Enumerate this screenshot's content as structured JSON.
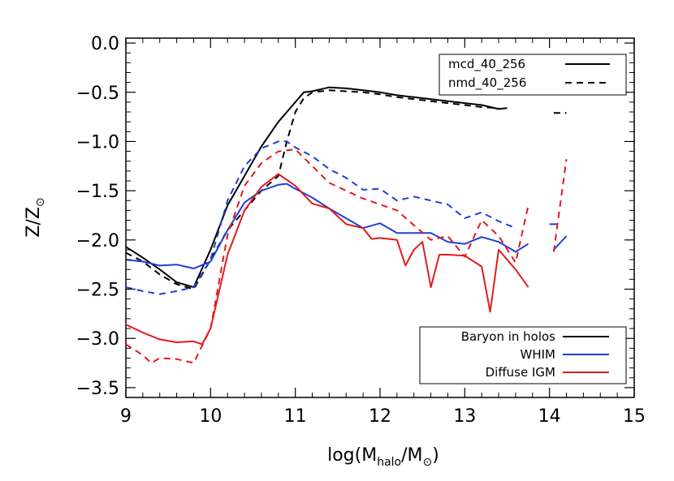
{
  "chart_data": {
    "type": "line",
    "title": "",
    "xlabel": {
      "pre": "log(M",
      "sub": "halo",
      "mid": "/M",
      "sun": "⊙",
      "post": ")"
    },
    "ylabel": {
      "pre": "Z/Z",
      "sun": "⊙"
    },
    "xlim": [
      9,
      15
    ],
    "ylim": [
      -3.6,
      0.05
    ],
    "xticks": [
      9,
      10,
      11,
      12,
      13,
      14,
      15
    ],
    "xtick_labels": [
      "9",
      "10",
      "11",
      "12",
      "13",
      "14",
      "15"
    ],
    "yticks": [
      0.0,
      -0.5,
      -1.0,
      -1.5,
      -2.0,
      -2.5,
      -3.0,
      -3.5
    ],
    "ytick_labels": [
      "0.0",
      "−0.5",
      "−1.0",
      "−1.5",
      "−2.0",
      "−2.5",
      "−3.0",
      "−3.5"
    ],
    "grid": false,
    "legend_models": {
      "placement": "top-right",
      "entries": [
        {
          "label": "mcd_40_256",
          "style": "solid",
          "color": "#000000"
        },
        {
          "label": "nmd_40_256",
          "style": "dashed",
          "color": "#000000"
        }
      ]
    },
    "legend_components": {
      "placement": "bottom-right",
      "entries": [
        {
          "label": "Baryon in holos",
          "color": "#000000"
        },
        {
          "label": "WHIM",
          "color": "#1f3fd6"
        },
        {
          "label": "Diffuse IGM",
          "color": "#e31a1c"
        }
      ]
    },
    "series": [
      {
        "component": "baryon",
        "model": "mcd_40_256",
        "style": "solid",
        "color": "#000000",
        "segments": [
          [
            [
              9.0,
              -2.07
            ],
            [
              9.2,
              -2.18
            ],
            [
              9.4,
              -2.3
            ],
            [
              9.6,
              -2.43
            ],
            [
              9.8,
              -2.48
            ],
            [
              10.0,
              -2.1
            ],
            [
              10.2,
              -1.65
            ],
            [
              10.4,
              -1.35
            ],
            [
              10.6,
              -1.05
            ],
            [
              10.8,
              -0.8
            ],
            [
              11.0,
              -0.6
            ],
            [
              11.1,
              -0.5
            ],
            [
              11.2,
              -0.49
            ],
            [
              11.4,
              -0.45
            ],
            [
              11.6,
              -0.46
            ],
            [
              11.8,
              -0.48
            ],
            [
              12.0,
              -0.5
            ],
            [
              12.2,
              -0.53
            ],
            [
              12.4,
              -0.55
            ],
            [
              12.6,
              -0.57
            ],
            [
              12.8,
              -0.59
            ],
            [
              13.0,
              -0.61
            ],
            [
              13.2,
              -0.63
            ],
            [
              13.4,
              -0.67
            ],
            [
              13.5,
              -0.66
            ]
          ]
        ]
      },
      {
        "component": "baryon",
        "model": "nmd_40_256",
        "style": "dashed",
        "color": "#000000",
        "segments": [
          [
            [
              9.0,
              -2.13
            ],
            [
              9.2,
              -2.22
            ],
            [
              9.4,
              -2.35
            ],
            [
              9.6,
              -2.45
            ],
            [
              9.8,
              -2.5
            ],
            [
              10.0,
              -2.2
            ],
            [
              10.2,
              -1.9
            ],
            [
              10.4,
              -1.7
            ],
            [
              10.6,
              -1.5
            ],
            [
              10.8,
              -1.35
            ],
            [
              10.9,
              -1.0
            ],
            [
              11.0,
              -0.7
            ],
            [
              11.1,
              -0.56
            ],
            [
              11.2,
              -0.5
            ],
            [
              11.4,
              -0.48
            ],
            [
              11.6,
              -0.49
            ],
            [
              11.8,
              -0.5
            ],
            [
              12.0,
              -0.52
            ],
            [
              12.2,
              -0.55
            ],
            [
              12.4,
              -0.57
            ],
            [
              12.6,
              -0.59
            ],
            [
              12.8,
              -0.61
            ],
            [
              13.0,
              -0.63
            ],
            [
              13.2,
              -0.65
            ],
            [
              13.4,
              -0.66
            ]
          ],
          [
            [
              14.05,
              -0.71
            ],
            [
              14.2,
              -0.71
            ]
          ]
        ]
      },
      {
        "component": "whim",
        "model": "mcd_40_256",
        "style": "solid",
        "color": "#1f3fd6",
        "segments": [
          [
            [
              9.0,
              -2.2
            ],
            [
              9.2,
              -2.22
            ],
            [
              9.4,
              -2.26
            ],
            [
              9.6,
              -2.25
            ],
            [
              9.8,
              -2.29
            ],
            [
              10.0,
              -2.22
            ],
            [
              10.2,
              -1.9
            ],
            [
              10.4,
              -1.62
            ],
            [
              10.6,
              -1.5
            ],
            [
              10.8,
              -1.44
            ],
            [
              10.9,
              -1.43
            ],
            [
              11.0,
              -1.48
            ],
            [
              11.2,
              -1.57
            ],
            [
              11.4,
              -1.68
            ],
            [
              11.6,
              -1.78
            ],
            [
              11.8,
              -1.88
            ],
            [
              12.0,
              -1.83
            ],
            [
              12.2,
              -1.93
            ],
            [
              12.4,
              -1.93
            ],
            [
              12.6,
              -1.93
            ],
            [
              12.8,
              -2.02
            ],
            [
              13.0,
              -2.04
            ],
            [
              13.2,
              -1.97
            ],
            [
              13.4,
              -2.02
            ],
            [
              13.6,
              -2.12
            ],
            [
              13.75,
              -2.04
            ]
          ],
          [
            [
              14.0,
              -1.84
            ],
            [
              14.1,
              -1.84
            ]
          ],
          [
            [
              14.05,
              -2.1
            ],
            [
              14.2,
              -1.96
            ]
          ]
        ]
      },
      {
        "component": "whim",
        "model": "nmd_40_256",
        "style": "dashed",
        "color": "#1f3fd6",
        "segments": [
          [
            [
              9.0,
              -2.48
            ],
            [
              9.2,
              -2.52
            ],
            [
              9.4,
              -2.55
            ],
            [
              9.6,
              -2.52
            ],
            [
              9.8,
              -2.48
            ],
            [
              10.0,
              -2.2
            ],
            [
              10.2,
              -1.6
            ],
            [
              10.4,
              -1.25
            ],
            [
              10.6,
              -1.07
            ],
            [
              10.8,
              -1.0
            ],
            [
              10.9,
              -1.0
            ],
            [
              11.0,
              -1.06
            ],
            [
              11.2,
              -1.15
            ],
            [
              11.4,
              -1.28
            ],
            [
              11.6,
              -1.37
            ],
            [
              11.8,
              -1.49
            ],
            [
              12.0,
              -1.48
            ],
            [
              12.2,
              -1.6
            ],
            [
              12.4,
              -1.56
            ],
            [
              12.6,
              -1.6
            ],
            [
              12.8,
              -1.64
            ],
            [
              13.0,
              -1.78
            ],
            [
              13.2,
              -1.72
            ],
            [
              13.4,
              -1.81
            ],
            [
              13.6,
              -1.88
            ]
          ]
        ]
      },
      {
        "component": "igm",
        "model": "mcd_40_256",
        "style": "solid",
        "color": "#e31a1c",
        "segments": [
          [
            [
              9.0,
              -2.86
            ],
            [
              9.2,
              -2.94
            ],
            [
              9.4,
              -3.01
            ],
            [
              9.6,
              -3.04
            ],
            [
              9.8,
              -3.03
            ],
            [
              9.9,
              -3.06
            ],
            [
              10.0,
              -2.9
            ],
            [
              10.2,
              -2.15
            ],
            [
              10.4,
              -1.7
            ],
            [
              10.6,
              -1.46
            ],
            [
              10.8,
              -1.33
            ],
            [
              11.0,
              -1.45
            ],
            [
              11.2,
              -1.63
            ],
            [
              11.4,
              -1.68
            ],
            [
              11.6,
              -1.84
            ],
            [
              11.8,
              -1.88
            ],
            [
              11.9,
              -1.99
            ],
            [
              12.0,
              -1.98
            ],
            [
              12.2,
              -2.0
            ],
            [
              12.3,
              -2.26
            ],
            [
              12.4,
              -2.1
            ],
            [
              12.5,
              -2.02
            ],
            [
              12.6,
              -2.48
            ],
            [
              12.7,
              -2.15
            ],
            [
              12.8,
              -2.15
            ],
            [
              13.0,
              -2.16
            ],
            [
              13.2,
              -2.27
            ],
            [
              13.3,
              -2.73
            ],
            [
              13.4,
              -2.1
            ],
            [
              13.6,
              -2.3
            ],
            [
              13.75,
              -2.48
            ]
          ]
        ]
      },
      {
        "component": "igm",
        "model": "nmd_40_256",
        "style": "dashed",
        "color": "#e31a1c",
        "segments": [
          [
            [
              9.0,
              -3.06
            ],
            [
              9.2,
              -3.17
            ],
            [
              9.3,
              -3.25
            ],
            [
              9.4,
              -3.2
            ],
            [
              9.6,
              -3.21
            ],
            [
              9.8,
              -3.25
            ],
            [
              10.0,
              -2.9
            ],
            [
              10.2,
              -1.95
            ],
            [
              10.4,
              -1.45
            ],
            [
              10.6,
              -1.22
            ],
            [
              10.8,
              -1.1
            ],
            [
              11.0,
              -1.08
            ],
            [
              11.2,
              -1.25
            ],
            [
              11.4,
              -1.42
            ],
            [
              11.6,
              -1.5
            ],
            [
              11.8,
              -1.58
            ],
            [
              12.0,
              -1.64
            ],
            [
              12.2,
              -1.7
            ],
            [
              12.4,
              -1.85
            ],
            [
              12.6,
              -2.0
            ],
            [
              12.8,
              -1.96
            ],
            [
              13.0,
              -2.17
            ],
            [
              13.2,
              -1.8
            ],
            [
              13.4,
              -1.96
            ],
            [
              13.6,
              -2.23
            ],
            [
              13.75,
              -1.65
            ]
          ],
          [
            [
              14.05,
              -2.12
            ],
            [
              14.2,
              -1.18
            ]
          ]
        ]
      }
    ]
  }
}
